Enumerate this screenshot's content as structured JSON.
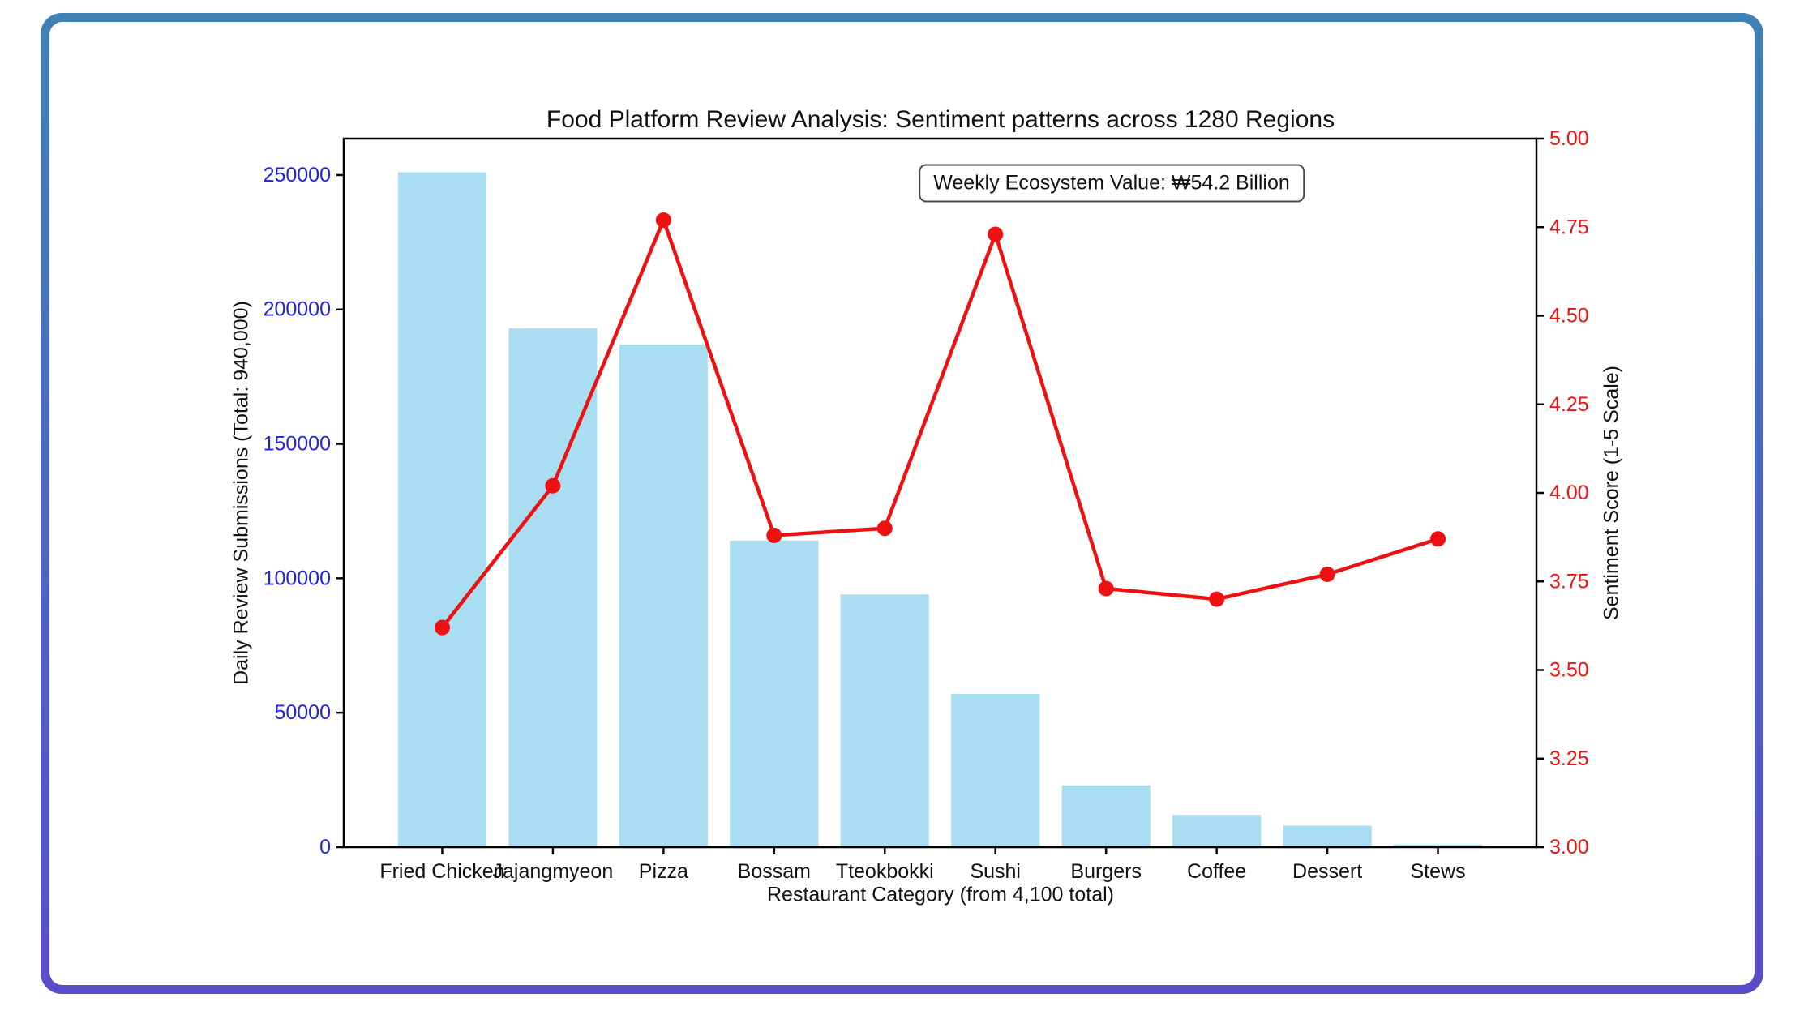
{
  "frame": {
    "gradient_top_color": "#4181B4",
    "gradient_bottom_color": "#5A4EC8",
    "background": "#ffffff"
  },
  "chart_data": {
    "type": "bar",
    "title": "Food Platform Review Analysis: Sentiment patterns across 1280 Regions",
    "annotation": "Weekly Ecosystem Value: ₩54.2 Billion",
    "xlabel": "Restaurant Category (from 4,100 total)",
    "categories": [
      "Fried Chicken",
      "Jajangmyeon",
      "Pizza",
      "Bossam",
      "Tteokbokki",
      "Sushi",
      "Burgers",
      "Coffee",
      "Dessert",
      "Stews"
    ],
    "series": [
      {
        "name": "Daily Review Submissions",
        "type": "bar",
        "axis": "left",
        "color": "#A9DEF2",
        "values": [
          251000,
          193000,
          187000,
          114000,
          94000,
          57000,
          23000,
          12000,
          8000,
          1000
        ]
      },
      {
        "name": "Sentiment Score",
        "type": "line",
        "axis": "right",
        "color": "#EE1111",
        "values": [
          3.62,
          4.02,
          4.77,
          3.88,
          3.9,
          4.73,
          3.73,
          3.7,
          3.77,
          3.87
        ]
      }
    ],
    "left_axis": {
      "label": "Daily Review Submissions (Total: 940,000)",
      "color": "#2222DD",
      "tick_labels": [
        "0",
        "50000",
        "100000",
        "150000",
        "200000",
        "250000"
      ],
      "tick_values": [
        0,
        50000,
        100000,
        150000,
        200000,
        250000
      ],
      "ylim": [
        0,
        263550
      ]
    },
    "right_axis": {
      "label": "Sentiment Score (1-5 Scale)",
      "color": "#EE1111",
      "tick_labels": [
        "3.00",
        "3.25",
        "3.50",
        "3.75",
        "4.00",
        "4.25",
        "4.50",
        "4.75",
        "5.00"
      ],
      "tick_values": [
        3.0,
        3.25,
        3.5,
        3.75,
        4.0,
        4.25,
        4.5,
        4.75,
        5.0
      ],
      "ylim": [
        3.0,
        5.0
      ]
    },
    "x_axis": {
      "tick_color": "#111111",
      "spine_color": "#000000"
    },
    "legend": "none",
    "grid": false
  }
}
